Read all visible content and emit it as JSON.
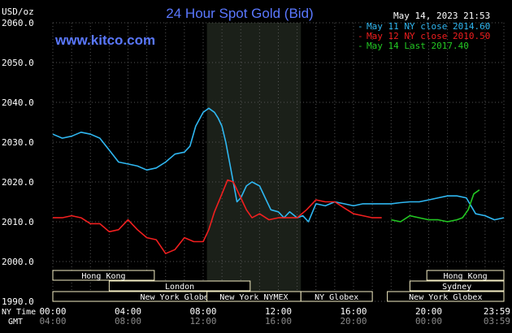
{
  "chart_data": {
    "type": "line",
    "title": "24 Hour Spot Gold (Bid)",
    "ylabel": "USD/oz",
    "watermark": "www.kitco.com",
    "timestamp": "May 14, 2023 21:53",
    "ylim": [
      1990,
      2060
    ],
    "yticks": [
      "2060.0",
      "2050.0",
      "2040.0",
      "2030.0",
      "2020.0",
      "2010.0",
      "2000.0",
      "1990.0"
    ],
    "xlim": [
      0,
      24
    ],
    "x_label_ny": "NY Time",
    "x_label_gmt": "GMT",
    "x_ticks_ny": [
      "00:00",
      "04:00",
      "08:00",
      "12:00",
      "16:00",
      "20:00",
      "23:59"
    ],
    "x_ticks_gmt": [
      "04:00",
      "08:00",
      "12:00",
      "16:00",
      "20:00",
      "00:00",
      "03:59"
    ],
    "grid": true,
    "legend_position": "top-right",
    "colors": {
      "background": "#000000",
      "grid": "#555555",
      "title": "#5a78ff",
      "watermark": "#5a78ff",
      "session_shade": "#1b2019",
      "session_box": "#f4eec4"
    },
    "series": [
      {
        "name": "May 11 NY close 2014.60",
        "color": "#2fb7f1",
        "x": [
          0,
          0.5,
          1,
          1.5,
          2,
          2.5,
          3,
          3.5,
          4,
          4.5,
          5,
          5.5,
          6,
          6.5,
          7,
          7.3,
          7.6,
          8,
          8.3,
          8.6,
          8.8,
          9,
          9.2,
          9.4,
          9.6,
          9.8,
          10,
          10.3,
          10.6,
          11,
          11.3,
          11.6,
          12,
          12.3,
          12.6,
          13,
          13.3,
          13.6,
          14,
          14.5,
          15,
          15.5,
          16,
          16.5,
          17,
          17.5,
          18,
          18.5,
          19,
          19.5,
          20,
          20.5,
          21,
          21.5,
          22,
          22.5,
          23,
          23.5,
          24
        ],
        "values": [
          2032,
          2031,
          2031.5,
          2032.5,
          2032,
          2031,
          2028,
          2025,
          2024.5,
          2024,
          2023,
          2023.5,
          2025,
          2027,
          2027.5,
          2029,
          2034,
          2037.5,
          2038.5,
          2037.5,
          2036,
          2034,
          2030,
          2025,
          2020,
          2015,
          2016,
          2019,
          2020,
          2019,
          2016,
          2013,
          2012.5,
          2011,
          2012.5,
          2011,
          2011.5,
          2010,
          2014.5,
          2014,
          2015,
          2014.5,
          2014,
          2014.5,
          2014.5,
          2014.5,
          2014.5,
          2014.8,
          2015,
          2015,
          2015.5,
          2016,
          2016.5,
          2016.5,
          2016,
          2012,
          2011.5,
          2010.5,
          2011
        ]
      },
      {
        "name": "May 12 NY close 2010.50",
        "color": "#f11f1f",
        "x": [
          0,
          0.5,
          1,
          1.5,
          2,
          2.5,
          3,
          3.5,
          4,
          4.5,
          5,
          5.5,
          6,
          6.5,
          7,
          7.5,
          8,
          8.3,
          8.6,
          9,
          9.3,
          9.6,
          10,
          10.3,
          10.6,
          11,
          11.5,
          12,
          12.5,
          13,
          13.5,
          14,
          14.5,
          15,
          15.5,
          16,
          16.5,
          17,
          17.5
        ],
        "values": [
          2011,
          2011,
          2011.5,
          2011,
          2009.5,
          2009.5,
          2007.5,
          2008,
          2010.5,
          2008,
          2006,
          2005.5,
          2002,
          2003,
          2006,
          2005,
          2005,
          2008,
          2012.5,
          2017,
          2020.5,
          2020,
          2016,
          2013,
          2011,
          2012,
          2010.5,
          2011,
          2011,
          2011,
          2013,
          2015.5,
          2015,
          2015,
          2013.5,
          2012,
          2011.5,
          2011,
          2011
        ]
      },
      {
        "name": "May 14 Last 2017.40",
        "color": "#23c823",
        "x": [
          18,
          18.5,
          19,
          19.5,
          20,
          20.5,
          21,
          21.5,
          21.8,
          22.1,
          22.4,
          22.7
        ],
        "values": [
          2010.5,
          2010,
          2011.5,
          2011,
          2010.5,
          2010.5,
          2010,
          2010.5,
          2011,
          2013,
          2017,
          2018
        ]
      }
    ],
    "sessions": [
      {
        "label": "Hong Kong",
        "row": 1,
        "start": 0,
        "end": 5.4
      },
      {
        "label": "London",
        "row": 2,
        "start": 3,
        "end": 10.5
      },
      {
        "label": "New York Globex",
        "row": 3,
        "start": 0,
        "end": 13.2
      },
      {
        "label": "New York NYMEX",
        "row": 3,
        "start": 8.2,
        "end": 13.2
      },
      {
        "label": "NY Globex",
        "row": 3,
        "start": 13.2,
        "end": 17
      },
      {
        "label": "Hong Kong",
        "row": 1,
        "start": 19.9,
        "end": 24
      },
      {
        "label": "Sydney",
        "row": 2,
        "start": 19,
        "end": 24
      },
      {
        "label": "New York Globex",
        "row": 3,
        "start": 17.8,
        "end": 24
      }
    ],
    "shaded_region": [
      8.2,
      13.2
    ]
  }
}
